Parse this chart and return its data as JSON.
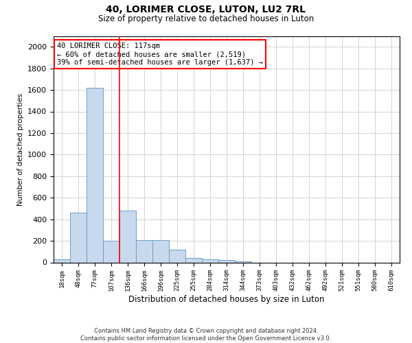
{
  "title": "40, LORIMER CLOSE, LUTON, LU2 7RL",
  "subtitle": "Size of property relative to detached houses in Luton",
  "xlabel": "Distribution of detached houses by size in Luton",
  "ylabel": "Number of detached properties",
  "categories": [
    "18sqm",
    "48sqm",
    "77sqm",
    "107sqm",
    "136sqm",
    "166sqm",
    "196sqm",
    "225sqm",
    "255sqm",
    "284sqm",
    "314sqm",
    "344sqm",
    "373sqm",
    "403sqm",
    "432sqm",
    "462sqm",
    "492sqm",
    "521sqm",
    "551sqm",
    "580sqm",
    "610sqm"
  ],
  "values": [
    30,
    460,
    1620,
    200,
    480,
    210,
    210,
    115,
    40,
    30,
    20,
    10,
    0,
    0,
    0,
    0,
    0,
    0,
    0,
    0,
    0
  ],
  "bar_color": "#c8d9ee",
  "bar_edge_color": "#6a9fc8",
  "vline_bar_index": 3,
  "vline_color": "red",
  "annotation_line1": "40 LORIMER CLOSE: 117sqm",
  "annotation_line2": "← 60% of detached houses are smaller (2,519)",
  "annotation_line3": "39% of semi-detached houses are larger (1,637) →",
  "annotation_box_color": "white",
  "annotation_box_edge_color": "red",
  "ylim": [
    0,
    2100
  ],
  "yticks": [
    0,
    200,
    400,
    600,
    800,
    1000,
    1200,
    1400,
    1600,
    1800,
    2000
  ],
  "footer_line1": "Contains HM Land Registry data © Crown copyright and database right 2024.",
  "footer_line2": "Contains public sector information licensed under the Open Government Licence v3.0.",
  "background_color": "#ffffff",
  "grid_color": "#cccccc"
}
